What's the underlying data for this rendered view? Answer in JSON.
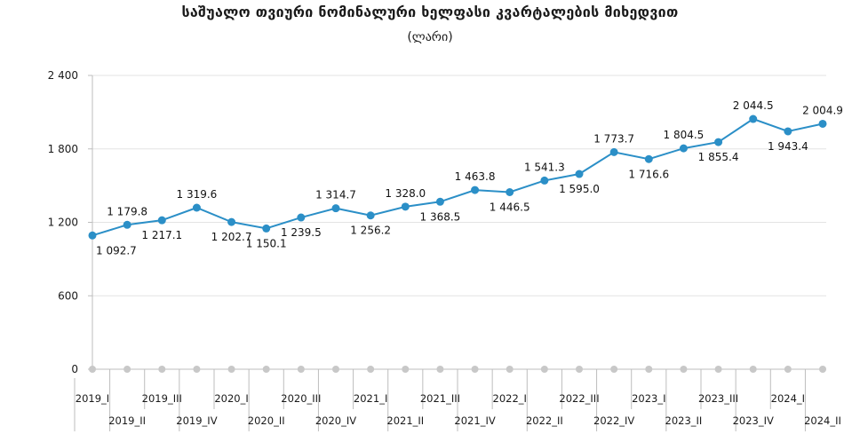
{
  "chart_data": {
    "type": "line",
    "title": "საშუალო თვიური ნომინალური ხელფასი კვარტალების მიხედვით",
    "subtitle": "(ლარი)",
    "xlabel": "",
    "ylabel": "",
    "ylim": [
      0,
      2400
    ],
    "yticks": [
      0,
      600,
      1200,
      1800,
      2400
    ],
    "ytick_labels": [
      "0",
      "600",
      "1 200",
      "1 800",
      "2 400"
    ],
    "grid": "horizontal",
    "categories": [
      "2019_I",
      "2019_II",
      "2019_III",
      "2019_IV",
      "2020_I",
      "2020_II",
      "2020_III",
      "2020_IV",
      "2021_I",
      "2021_II",
      "2021_III",
      "2021_IV",
      "2022_I",
      "2022_II",
      "2022_III",
      "2022_IV",
      "2023_I",
      "2023_II",
      "2023_III",
      "2023_IV",
      "2024_I",
      "2024_II"
    ],
    "series": [
      {
        "values": [
          1092.7,
          1179.8,
          1217.1,
          1319.6,
          1202.7,
          1150.1,
          1239.5,
          1314.7,
          1256.2,
          1328.0,
          1368.5,
          1463.8,
          1446.5,
          1541.3,
          1595.0,
          1773.7,
          1716.6,
          1804.5,
          1855.4,
          2044.5,
          1943.4,
          2004.9
        ],
        "labels": [
          "1 092.7",
          "1 179.8",
          "1 217.1",
          "1 319.6",
          "1 202.7",
          "1 150.1",
          "1 239.5",
          "1 314.7",
          "1 256.2",
          "1 328.0",
          "1 368.5",
          "1 463.8",
          "1 446.5",
          "1 541.3",
          "1 595.0",
          "1 773.7",
          "1 716.6",
          "1 804.5",
          "1 855.4",
          "2 044.5",
          "1 943.4",
          "2 004.9"
        ]
      }
    ],
    "colors": {
      "line": "#2b8fc7",
      "marker": "#2b8fc7",
      "grid": "#e3e3e3",
      "axis": "#bdbdbd",
      "baseline_marker": "#c8c8c8"
    }
  }
}
